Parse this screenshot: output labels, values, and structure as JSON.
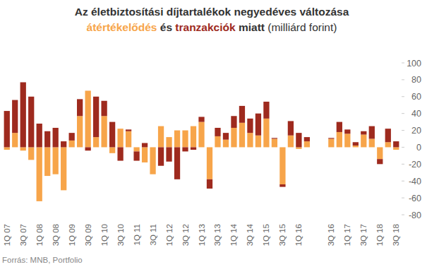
{
  "chart_data": {
    "type": "bar",
    "stacked": true,
    "title": "Az életbiztosítási díjtartalékok negyedéves változása",
    "subtitle": [
      "és",
      "miatt",
      "(milliárd forint)"
    ],
    "source": "Forrás: MNB, Portfolio",
    "legend": "top",
    "grid": false,
    "categories": [
      "1Q 07",
      null,
      "3Q 07",
      null,
      "1Q 08",
      null,
      "3Q 08",
      null,
      "1Q 09",
      null,
      "3Q 09",
      null,
      "1Q 10",
      null,
      "3Q 10",
      null,
      "1Q 11",
      null,
      "3Q 11",
      null,
      "1Q 12",
      null,
      "3Q 12",
      null,
      "1Q 13",
      null,
      "3Q 13",
      null,
      "1Q 14",
      null,
      "3Q 14",
      null,
      "1Q 15",
      null,
      "3Q 15",
      null,
      "1Q 16",
      null,
      null,
      null,
      "3Q 16",
      null,
      "1Q 17",
      null,
      "3Q 17",
      null,
      "1Q 18",
      null,
      "3Q 18"
    ],
    "series": [
      {
        "name": "átértékelődés",
        "color": "#f7a54a",
        "values": [
          -3,
          17,
          -4,
          -15,
          -64,
          -34,
          -32,
          -51,
          8,
          37,
          67,
          12,
          37,
          -7,
          22,
          19,
          -5,
          -18,
          -32,
          25,
          12,
          20,
          20,
          25,
          30,
          -38,
          13,
          9,
          23,
          29,
          17,
          14,
          34,
          10,
          -44,
          14,
          -2,
          7,
          null,
          null,
          10,
          18,
          16,
          2,
          15,
          10,
          -14,
          6,
          -3
        ]
      },
      {
        "name": "tranzakciók",
        "color": "#9e2a1e",
        "values": [
          43,
          39,
          77,
          60,
          28,
          19,
          23,
          7,
          9,
          20,
          -4,
          48,
          18,
          30,
          -16,
          2,
          -11,
          5,
          0,
          -22,
          -17,
          -38,
          -5,
          -3,
          6,
          -11,
          10,
          8,
          14,
          20,
          17,
          26,
          20,
          1,
          -3,
          17,
          17,
          5,
          null,
          null,
          1,
          12,
          5,
          4,
          4,
          15,
          -6,
          16,
          7
        ]
      }
    ],
    "ylim": [
      -80,
      100
    ],
    "yticks": [
      -80,
      -60,
      -40,
      -20,
      0,
      20,
      40,
      60,
      80,
      100
    ]
  }
}
